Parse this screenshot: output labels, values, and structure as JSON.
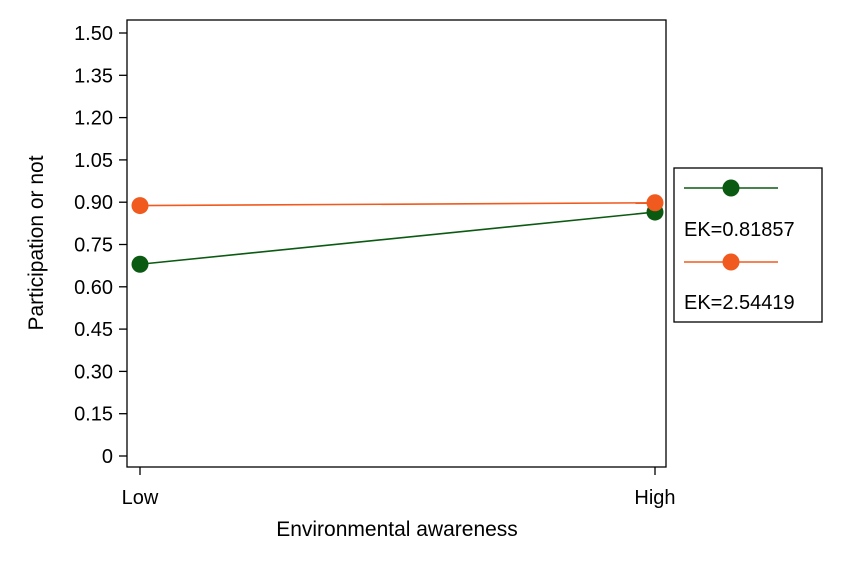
{
  "chart_data": {
    "type": "line",
    "title": "",
    "xlabel": "Environmental awareness",
    "ylabel": "Participation or not",
    "categories": [
      "Low",
      "High"
    ],
    "ylim": [
      0,
      1.5
    ],
    "yticks": [
      "0",
      "0.15",
      "0.30",
      "0.45",
      "0.60",
      "0.75",
      "0.90",
      "1.05",
      "1.20",
      "1.35",
      "1.50"
    ],
    "grid": false,
    "legend_position": "right",
    "series": [
      {
        "name": "EK=0.81857",
        "values": [
          0.68,
          0.865
        ],
        "color": "#0b5a12"
      },
      {
        "name": "EK=2.54419",
        "values": [
          0.888,
          0.898
        ],
        "color": "#f05a1e"
      }
    ]
  }
}
